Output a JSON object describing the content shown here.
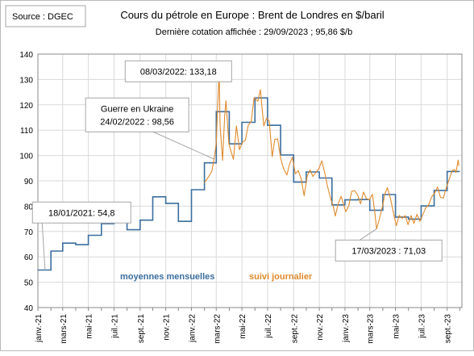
{
  "source_label": "Source : DGEC",
  "chart_data": {
    "type": "line",
    "title": "Cours du pétrole en Europe : Brent de Londres en $/baril",
    "subtitle": "Dernière cotation affichée : 29/09/2023 ; 95,86 $/b",
    "xlabel": "",
    "ylabel": "",
    "ylim": [
      40,
      140
    ],
    "yticks": [
      40,
      50,
      60,
      70,
      80,
      90,
      100,
      110,
      120,
      130,
      140
    ],
    "x_tick_labels": [
      "janv.-21",
      "mars-21",
      "mai-21",
      "juil.-21",
      "sept.-21",
      "nov.-21",
      "janv.-22",
      "mars-22",
      "mai-22",
      "juil.-22",
      "sept.-22",
      "nov.-22",
      "janv.-23",
      "mars-23",
      "mai-23",
      "juil.-23",
      "sept.-23"
    ],
    "grid": true,
    "colors": {
      "monthly": "#3b6e9e",
      "daily": "#e08a2c",
      "frame": "#888888",
      "grid": "#d9d9d9"
    },
    "series": [
      {
        "name": "moyennes mensuelles",
        "kind": "step",
        "months": [
          "2021-01",
          "2021-02",
          "2021-03",
          "2021-04",
          "2021-05",
          "2021-06",
          "2021-07",
          "2021-08",
          "2021-09",
          "2021-10",
          "2021-11",
          "2021-12",
          "2022-01",
          "2022-02",
          "2022-03",
          "2022-04",
          "2022-05",
          "2022-06",
          "2022-07",
          "2022-08",
          "2022-09",
          "2022-10",
          "2022-11",
          "2022-12",
          "2023-01",
          "2023-02",
          "2023-03",
          "2023-04",
          "2023-05",
          "2023-06",
          "2023-07",
          "2023-08",
          "2023-09"
        ],
        "values": [
          54.8,
          62.3,
          65.4,
          64.8,
          68.5,
          73.1,
          75.0,
          70.7,
          74.5,
          83.7,
          81.1,
          74.0,
          86.5,
          97.1,
          117.3,
          104.6,
          113.1,
          122.7,
          111.9,
          100.2,
          89.5,
          93.5,
          91.1,
          80.5,
          82.5,
          82.6,
          78.4,
          84.6,
          75.7,
          74.9,
          80.1,
          86.2,
          93.7
        ]
      },
      {
        "name": "suivi journalier",
        "kind": "line",
        "dates": [
          "2022-02-01",
          "2022-02-10",
          "2022-02-18",
          "2022-02-24",
          "2022-03-01",
          "2022-03-04",
          "2022-03-08",
          "2022-03-10",
          "2022-03-16",
          "2022-03-21",
          "2022-03-24",
          "2022-03-31",
          "2022-04-06",
          "2022-04-11",
          "2022-04-18",
          "2022-04-25",
          "2022-05-02",
          "2022-05-09",
          "2022-05-16",
          "2022-05-23",
          "2022-05-30",
          "2022-06-08",
          "2022-06-14",
          "2022-06-22",
          "2022-06-29",
          "2022-07-05",
          "2022-07-12",
          "2022-07-18",
          "2022-07-25",
          "2022-08-01",
          "2022-08-08",
          "2022-08-16",
          "2022-08-22",
          "2022-08-29",
          "2022-09-05",
          "2022-09-12",
          "2022-09-19",
          "2022-09-26",
          "2022-10-03",
          "2022-10-10",
          "2022-10-17",
          "2022-10-24",
          "2022-10-31",
          "2022-11-07",
          "2022-11-14",
          "2022-11-21",
          "2022-11-28",
          "2022-12-05",
          "2022-12-09",
          "2022-12-16",
          "2022-12-23",
          "2023-01-03",
          "2023-01-10",
          "2023-01-17",
          "2023-01-24",
          "2023-01-31",
          "2023-02-07",
          "2023-02-14",
          "2023-02-21",
          "2023-02-28",
          "2023-03-07",
          "2023-03-13",
          "2023-03-17",
          "2023-03-24",
          "2023-03-31",
          "2023-04-06",
          "2023-04-12",
          "2023-04-19",
          "2023-04-26",
          "2023-05-03",
          "2023-05-10",
          "2023-05-17",
          "2023-05-24",
          "2023-05-31",
          "2023-06-07",
          "2023-06-14",
          "2023-06-21",
          "2023-06-28",
          "2023-07-05",
          "2023-07-12",
          "2023-07-19",
          "2023-07-26",
          "2023-08-02",
          "2023-08-09",
          "2023-08-16",
          "2023-08-23",
          "2023-08-30",
          "2023-09-06",
          "2023-09-13",
          "2023-09-19",
          "2023-09-22",
          "2023-09-27",
          "2023-09-29"
        ],
        "values": [
          89.2,
          91.4,
          93.5,
          98.56,
          105.0,
          118.1,
          133.18,
          112.0,
          98.1,
          115.6,
          121.6,
          104.7,
          101.1,
          98.5,
          111.7,
          102.3,
          105.1,
          106.0,
          111.9,
          113.4,
          122.8,
          121.4,
          126.0,
          111.7,
          114.8,
          113.5,
          99.5,
          106.3,
          106.6,
          99.0,
          94.8,
          92.3,
          96.5,
          99.3,
          92.8,
          94.0,
          90.6,
          84.1,
          91.8,
          94.3,
          91.7,
          93.3,
          94.8,
          97.9,
          93.1,
          87.5,
          83.0,
          79.4,
          76.1,
          81.0,
          83.9,
          77.8,
          80.1,
          85.9,
          86.1,
          84.5,
          80.9,
          85.6,
          83.0,
          82.5,
          84.7,
          77.5,
          71.03,
          75.0,
          79.8,
          84.9,
          87.3,
          83.1,
          77.7,
          72.3,
          76.4,
          75.2,
          76.3,
          72.7,
          76.3,
          73.2,
          76.8,
          74.0,
          76.6,
          79.4,
          80.5,
          83.6,
          85.1,
          87.5,
          83.5,
          83.2,
          87.4,
          90.6,
          94.1,
          94.4,
          93.3,
          98.2,
          95.86
        ]
      }
    ],
    "annotations": [
      {
        "text": "18/01/2021: 54,8",
        "date": "2021-01-18",
        "value": 54.8,
        "box_anchor": "2021-04-15",
        "box_value": 77.5
      },
      {
        "text": "08/03/2022: 133,18",
        "date": "2022-03-08",
        "value": 133.18,
        "box_anchor": "2021-12-01",
        "box_value": 133.2
      },
      {
        "text": "Guerre en Ukraine\n24/02/2022 : 98,56",
        "date": "2022-02-24",
        "value": 98.56,
        "box_anchor": "2021-08-25",
        "box_value": 116.0
      },
      {
        "text": "17/03/2023 : 71,03",
        "date": "2023-03-17",
        "value": 71.03,
        "box_anchor": "2023-04-15",
        "box_value": 62.5
      }
    ]
  }
}
